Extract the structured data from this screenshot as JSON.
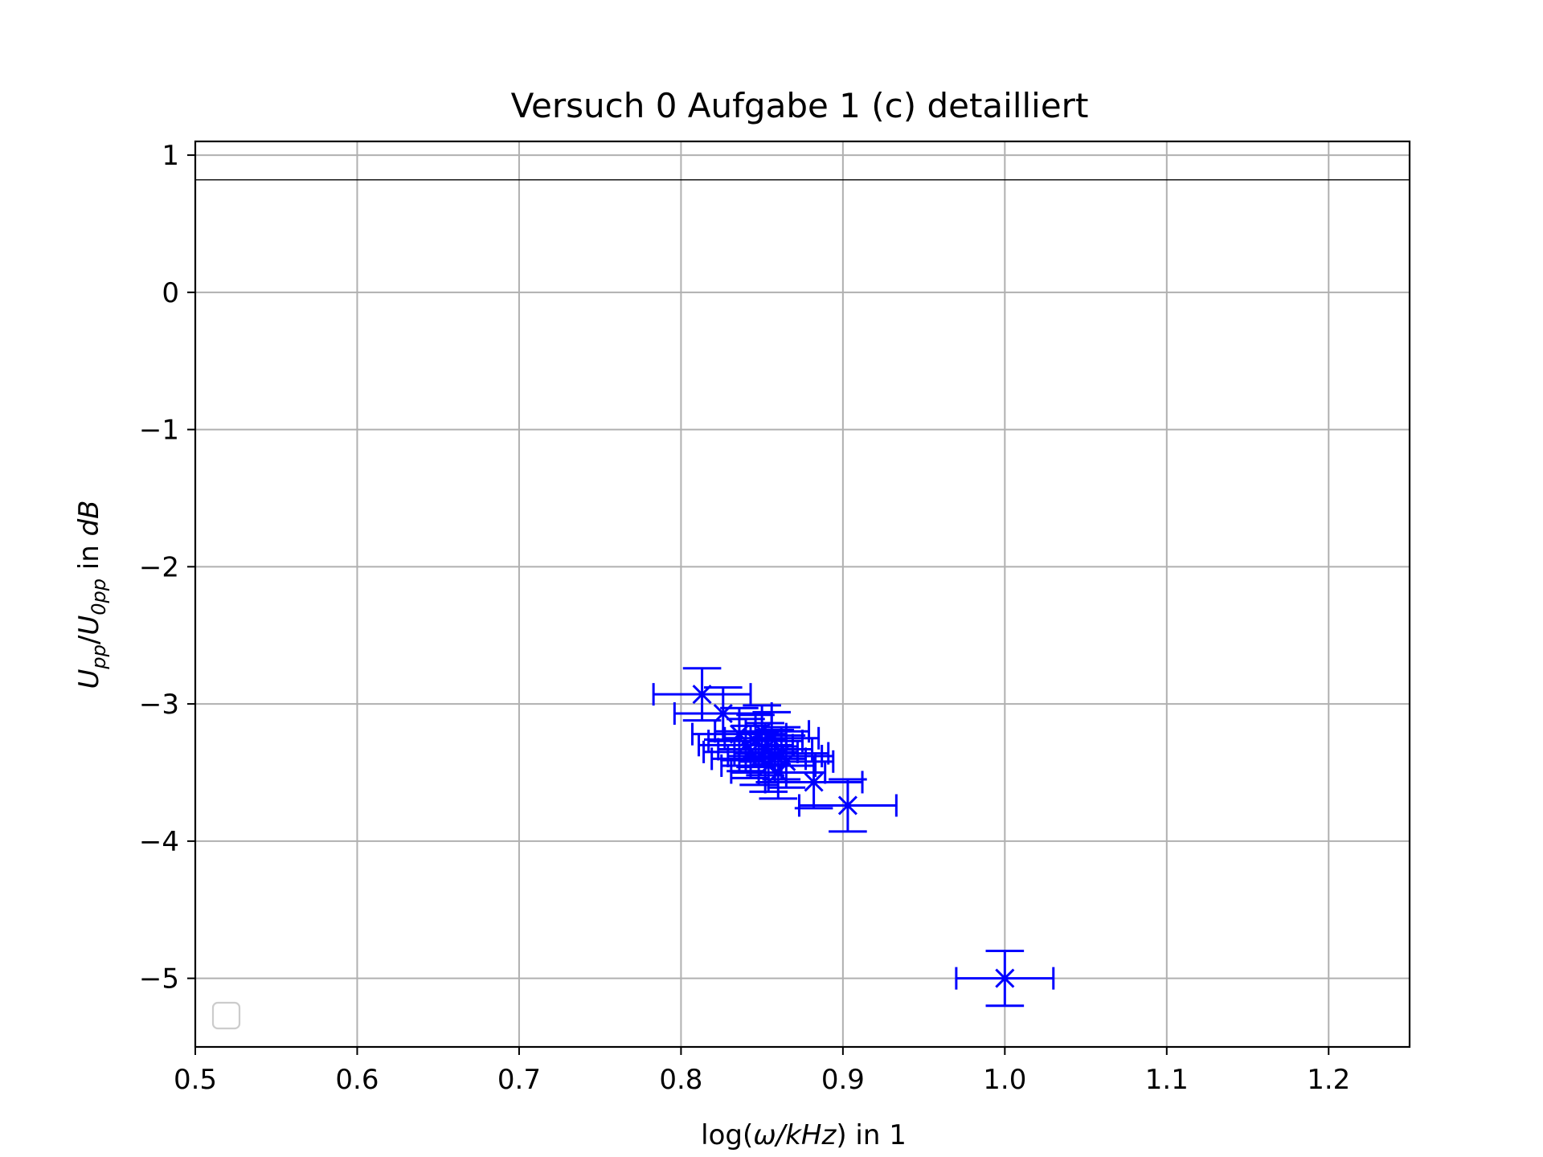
{
  "chart_data": {
    "type": "scatter",
    "title": "Versuch 0 Aufgabe 1 (c) detailliert",
    "xlabel": {
      "pre": "log(",
      "italic": "ω/kHz",
      "post": ") in 1"
    },
    "ylabel": {
      "u1": "U",
      "s1": "pp",
      "slash": "/",
      "u2": "U",
      "s2": "0pp",
      "mid": " in ",
      "unit": "dB"
    },
    "xlim": [
      0.5,
      1.25
    ],
    "ylim": [
      -5.5,
      1.1
    ],
    "xticks": [
      "0.5",
      "0.6",
      "0.7",
      "0.8",
      "0.9",
      "1.0",
      "1.1",
      "1.2"
    ],
    "xtick_values": [
      0.5,
      0.6,
      0.7,
      0.8,
      0.9,
      1.0,
      1.1,
      1.2
    ],
    "yticks": [
      "1",
      "0",
      "−1",
      "−2",
      "−3",
      "−4",
      "−5"
    ],
    "ytick_values": [
      1,
      0,
      -1,
      -2,
      -3,
      -4,
      -5
    ],
    "grid": true,
    "legend": "lower-left (empty)",
    "reference_line_y": 0.82,
    "marker_color": "#0000ff",
    "marker": "x",
    "series": [
      {
        "points": [
          {
            "x": 0.813,
            "y": -2.93,
            "xerr": 0.03,
            "yerr": 0.19
          },
          {
            "x": 0.826,
            "y": -3.07,
            "xerr": 0.03,
            "yerr": 0.19
          },
          {
            "x": 0.836,
            "y": -3.22,
            "xerr": 0.029,
            "yerr": 0.19
          },
          {
            "x": 0.84,
            "y": -3.3,
            "xerr": 0.029,
            "yerr": 0.19
          },
          {
            "x": 0.843,
            "y": -3.35,
            "xerr": 0.029,
            "yerr": 0.19
          },
          {
            "x": 0.846,
            "y": -3.27,
            "xerr": 0.029,
            "yerr": 0.19
          },
          {
            "x": 0.848,
            "y": -3.4,
            "xerr": 0.029,
            "yerr": 0.19
          },
          {
            "x": 0.85,
            "y": -3.2,
            "xerr": 0.029,
            "yerr": 0.19
          },
          {
            "x": 0.852,
            "y": -3.33,
            "xerr": 0.029,
            "yerr": 0.19
          },
          {
            "x": 0.854,
            "y": -3.45,
            "xerr": 0.029,
            "yerr": 0.19
          },
          {
            "x": 0.856,
            "y": -3.25,
            "xerr": 0.029,
            "yerr": 0.19
          },
          {
            "x": 0.858,
            "y": -3.38,
            "xerr": 0.029,
            "yerr": 0.19
          },
          {
            "x": 0.86,
            "y": -3.5,
            "xerr": 0.029,
            "yerr": 0.19
          },
          {
            "x": 0.862,
            "y": -3.36,
            "xerr": 0.029,
            "yerr": 0.19
          },
          {
            "x": 0.865,
            "y": -3.42,
            "xerr": 0.029,
            "yerr": 0.19
          },
          {
            "x": 0.882,
            "y": -3.57,
            "xerr": 0.03,
            "yerr": 0.19
          },
          {
            "x": 0.903,
            "y": -3.74,
            "xerr": 0.03,
            "yerr": 0.19
          },
          {
            "x": 1.0,
            "y": -5.0,
            "xerr": 0.03,
            "yerr": 0.2
          }
        ]
      }
    ]
  }
}
